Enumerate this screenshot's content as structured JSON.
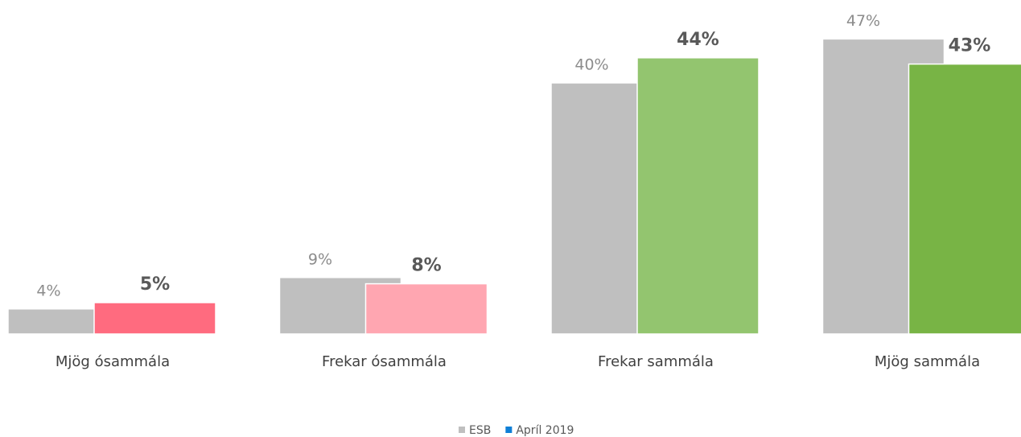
{
  "chart_data": {
    "type": "bar",
    "categories": [
      "Mjög ósammála",
      "Frekar ósammála",
      "Frekar sammála",
      "Mjög sammála"
    ],
    "series": [
      {
        "name": "ESB",
        "color": "#bfbfbf",
        "values": [
          4,
          9,
          40,
          47
        ],
        "value_labels": [
          "4%",
          "9%",
          "40%",
          "47%"
        ]
      },
      {
        "name": "Apríl 2019",
        "color": "#0f7fd6",
        "colors": [
          "#ff6b7f",
          "#ffa6b1",
          "#93c56f",
          "#78b445"
        ],
        "values": [
          5,
          8,
          44,
          43
        ],
        "value_labels": [
          "5%",
          "8%",
          "44%",
          "43%"
        ]
      }
    ]
  }
}
